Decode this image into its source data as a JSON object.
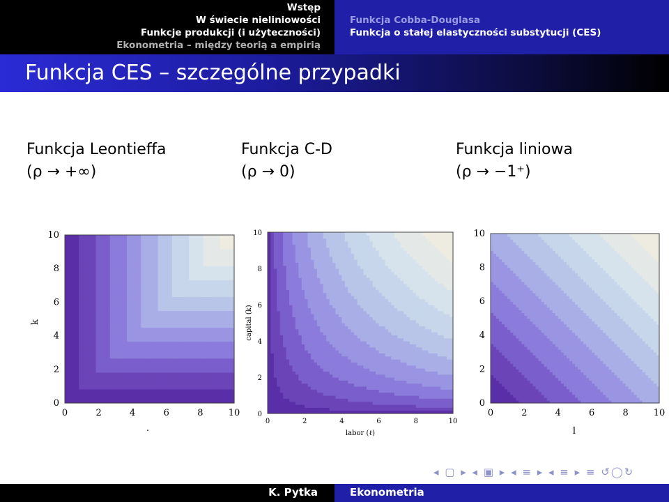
{
  "header": {
    "left_items": [
      "Wstęp",
      "W świecie nieliniowości",
      "Funkcje produkcji (i użyteczności)",
      "Ekonometria – między teorią a empirią"
    ],
    "right_items": [
      "Funkcja Cobba-Douglasa",
      "Funkcja o stałej elastyczności substytucji (CES)"
    ]
  },
  "slide_title": "Funkcja CES – szczególne przypadki",
  "columns": [
    {
      "name": "Funkcja Leontieffa",
      "limit": "(ρ → +∞)"
    },
    {
      "name": "Funkcja C-D",
      "limit": "(ρ → 0)"
    },
    {
      "name": "Funkcja liniowa",
      "limit": "(ρ → −1⁺)"
    }
  ],
  "plots": [
    {
      "ylabel": "k",
      "xlabel": ".",
      "ticks": [
        "0",
        "2",
        "4",
        "6",
        "8",
        "10"
      ]
    },
    {
      "ylabel": "capital (k)",
      "xlabel": "labor (ℓ)",
      "ticks": [
        "0",
        "2",
        "4",
        "6",
        "8",
        "10"
      ]
    },
    {
      "ylabel": "k",
      "xlabel": "l",
      "ticks": [
        "0",
        "2",
        "4",
        "6",
        "8",
        "10"
      ]
    }
  ],
  "palette": [
    "#5a2ea6",
    "#6b45b8",
    "#7a5ecb",
    "#8b7bdb",
    "#9a95e3",
    "#a9aee6",
    "#b8c5e8",
    "#c7d6ea",
    "#d6e2ec",
    "#e4e8e6",
    "#eeece0"
  ],
  "footer": {
    "author": "K. Pytka",
    "course": "Ekonometria"
  },
  "nav_symbols": "◂ ▢ ▸ ◂ ▣ ▸ ◂ ≡ ▸ ◂ ≡ ▸  ≡  ↺◯↻"
}
